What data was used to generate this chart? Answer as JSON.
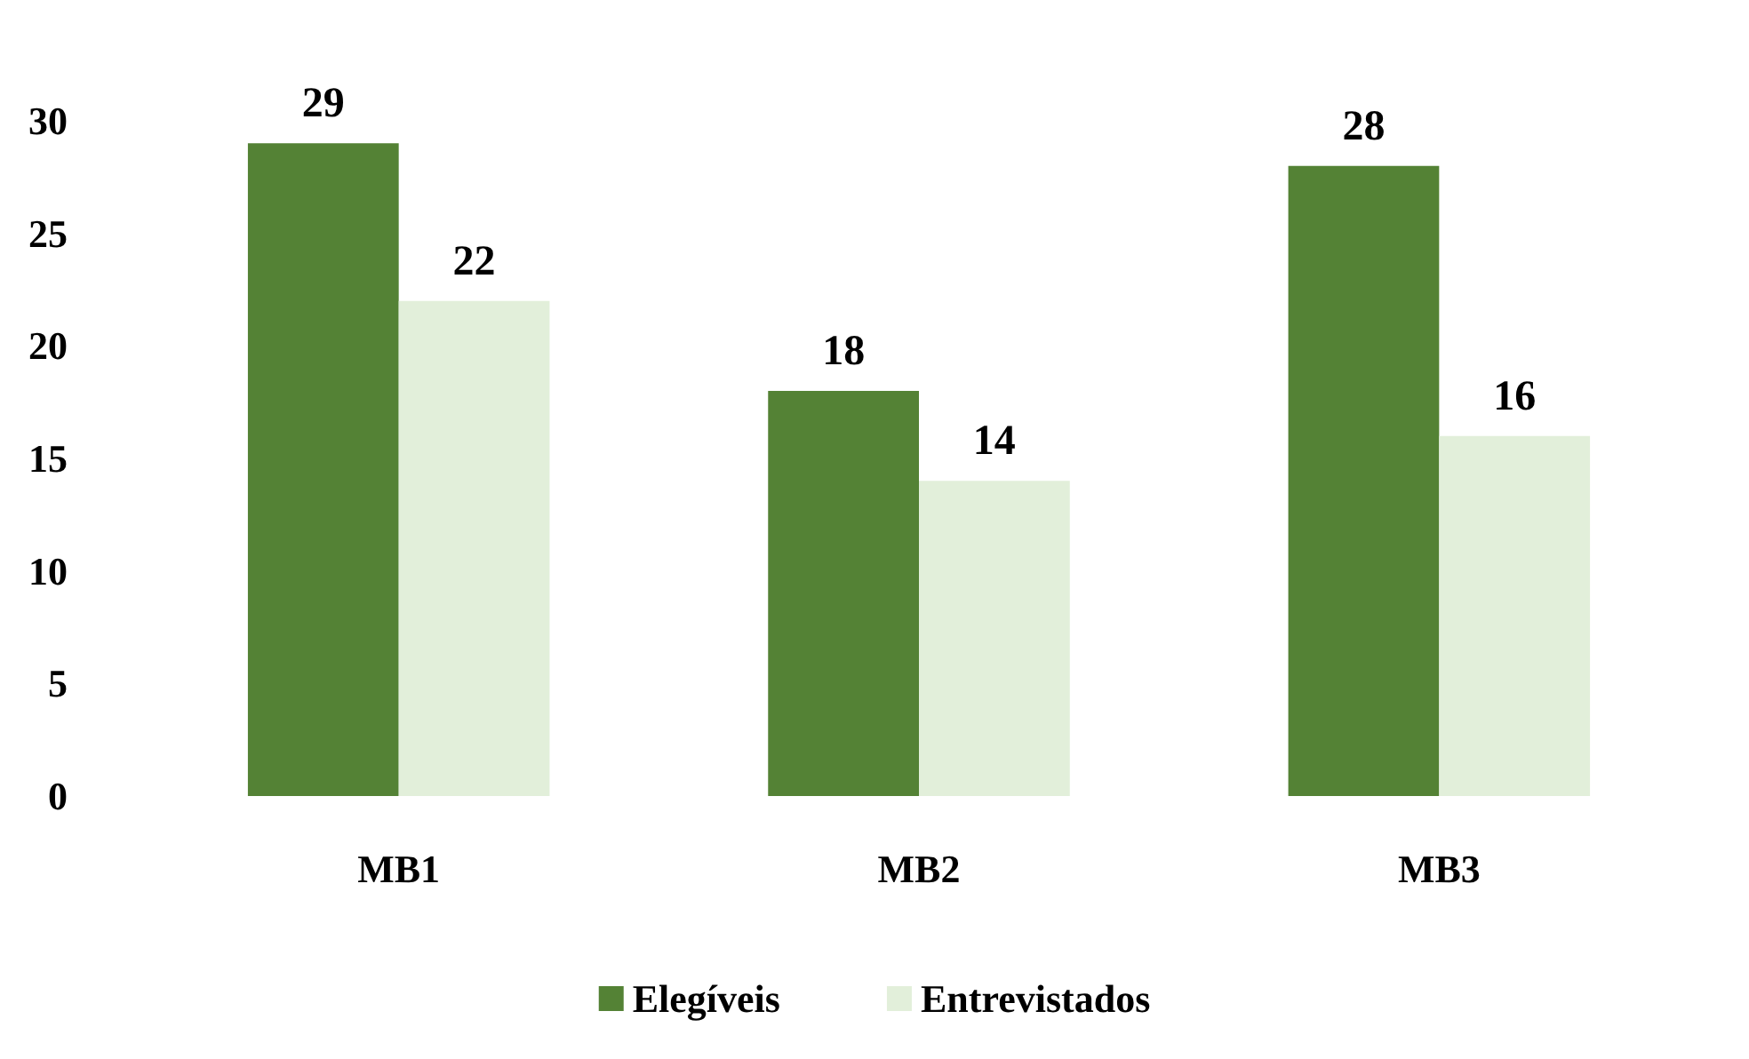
{
  "chart_data": {
    "type": "bar",
    "categories": [
      "MB1",
      "MB2",
      "MB3"
    ],
    "series": [
      {
        "name": "Elegíveis",
        "color": "#548235",
        "values": [
          29,
          18,
          28
        ]
      },
      {
        "name": "Entrevistados",
        "color": "#e2efda",
        "values": [
          22,
          14,
          16
        ]
      }
    ],
    "ylim": [
      0,
      30
    ],
    "yticks": [
      0,
      5,
      10,
      15,
      20,
      25,
      30
    ],
    "grid": false,
    "legend": "bottom",
    "data_labels": true
  }
}
